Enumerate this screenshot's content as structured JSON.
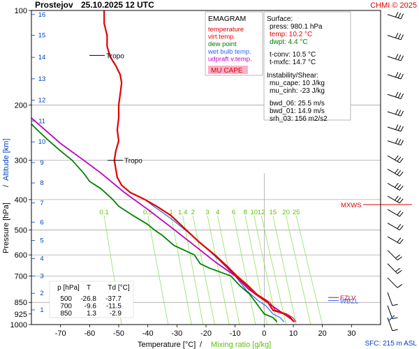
{
  "header": {
    "station": "Prostejov",
    "datetime": "25.10.2025 12 UTC",
    "copyright": "CHMI © 2025"
  },
  "legend": {
    "title": "EMAGRAM",
    "items": [
      {
        "label": "temperature",
        "color": "#e00000"
      },
      {
        "label": "virt.temp.",
        "color": "#e00000"
      },
      {
        "label": "dew point",
        "color": "#008000"
      },
      {
        "label": "wet bulb temp.",
        "color": "#3060ff"
      },
      {
        "label": "udpraft v.temp.",
        "color": "#c000c0"
      }
    ],
    "cape_badge": "MU CAPE",
    "cape_badge_color": "#ffb0c8"
  },
  "info": {
    "surface_title": "Surface:",
    "surface": [
      {
        "text": "press: 980.1 hPa",
        "color": "#000000"
      },
      {
        "text": "temp: 10.2 °C",
        "color": "#e00000"
      },
      {
        "text": "dwpt: 4.4 °C",
        "color": "#008000"
      }
    ],
    "tconv": "t-conv: 10.5 °C",
    "tmxfc": "t-mxfc: 14.7 °C",
    "instab_title": "Instability/Shear:",
    "instab": [
      "mu_cape: 10 J/kg",
      "mu_cinh: -23 J/kg",
      "bwd_06: 25.5 m/s",
      "bwd_01: 14.9 m/s",
      "srh_03: 156 m2/s2"
    ]
  },
  "table": {
    "headers": [
      "p [hPa]",
      "T",
      "Td [°C]"
    ],
    "rows": [
      [
        "500",
        "-26.8",
        "-37.7"
      ],
      [
        "700",
        "-9.6",
        "-11.5"
      ],
      [
        "850",
        "1.3",
        "-2.9"
      ]
    ]
  },
  "labels": {
    "tropo": "Tropo",
    "mxws": "MXWS",
    "fzlv": "FZLV",
    "wbzl": "WBZL",
    "sfc": "SFC: 215 m ASL"
  },
  "chart_data": {
    "type": "line",
    "title": "",
    "xlabel": "Temperature [°C]",
    "xlabel2": "Mixing ratio [g/kg]",
    "ylabel": "Pressure [hPa]",
    "ylabel2": "Altitude [km]",
    "xlim": [
      -80,
      40
    ],
    "ylim": [
      1000,
      100
    ],
    "yscale": "log",
    "x_ticks": [
      -70,
      -60,
      -50,
      -40,
      -30,
      -20,
      -10,
      0,
      10,
      20,
      30
    ],
    "y_ticks": [
      100,
      200,
      300,
      400,
      500,
      600,
      700,
      850,
      925,
      1000
    ],
    "y_gridlines": [
      200,
      300,
      400,
      500,
      600,
      700,
      850
    ],
    "altitude_ticks_km": [
      {
        "km": "16",
        "p": 103
      },
      {
        "km": "15",
        "p": 120
      },
      {
        "km": "14",
        "p": 141
      },
      {
        "km": "13",
        "p": 165
      },
      {
        "km": "12",
        "p": 193
      },
      {
        "km": "11",
        "p": 225
      },
      {
        "km": "10",
        "p": 262
      },
      {
        "km": "9",
        "p": 305
      },
      {
        "km": "8",
        "p": 354
      },
      {
        "km": "7",
        "p": 410
      },
      {
        "km": "6",
        "p": 472
      },
      {
        "km": "5",
        "p": 540
      },
      {
        "km": "4",
        "p": 617
      },
      {
        "km": "3",
        "p": 700
      },
      {
        "km": "2",
        "p": 795
      },
      {
        "km": "1",
        "p": 898
      }
    ],
    "mixing_ratio_labels": [
      "0.1",
      "0.5",
      "1",
      "1.4",
      "2",
      "3",
      "4",
      "6",
      "8",
      "10",
      "12",
      "15",
      "20",
      "25"
    ],
    "mixing_ratio_base_temp": [
      -49,
      -33,
      -25,
      -21,
      -17,
      -12,
      -8.5,
      -3,
      1,
      4.5,
      7.5,
      11,
      16,
      20
    ],
    "mixing_ratio_top_temp": [
      -55,
      -40,
      -32,
      -28,
      -24.5,
      -19.5,
      -16,
      -10.5,
      -6.5,
      -3.5,
      -1,
      3,
      7.5,
      11
    ],
    "tropopause_pressures": [
      139,
      300
    ],
    "series": [
      {
        "name": "temperature",
        "color": "#e00000",
        "points": [
          [
            10.2,
            980
          ],
          [
            9,
            950
          ],
          [
            7,
            925
          ],
          [
            3,
            900
          ],
          [
            1.3,
            850
          ],
          [
            -3,
            800
          ],
          [
            -6,
            750
          ],
          [
            -9.6,
            700
          ],
          [
            -13,
            650
          ],
          [
            -17,
            600
          ],
          [
            -22,
            550
          ],
          [
            -26.8,
            500
          ],
          [
            -32,
            450
          ],
          [
            -37,
            420
          ],
          [
            -41,
            400
          ],
          [
            -46,
            380
          ],
          [
            -49,
            360
          ],
          [
            -50.5,
            340
          ],
          [
            -51,
            320
          ],
          [
            -51.5,
            300
          ],
          [
            -51,
            280
          ],
          [
            -50,
            260
          ],
          [
            -50.5,
            240
          ],
          [
            -50,
            220
          ],
          [
            -50,
            200
          ],
          [
            -49.5,
            185
          ],
          [
            -49,
            170
          ],
          [
            -49.5,
            160
          ],
          [
            -51,
            150
          ],
          [
            -53,
            140
          ],
          [
            -54,
            130
          ],
          [
            -54,
            120
          ],
          [
            -55,
            110
          ],
          [
            -55,
            100
          ]
        ]
      },
      {
        "name": "virt.temp.",
        "color": "#e00000",
        "points": [
          [
            11,
            980
          ],
          [
            9.8,
            950
          ],
          [
            7.8,
            925
          ],
          [
            3.8,
            900
          ],
          [
            2,
            850
          ],
          [
            -2.4,
            800
          ],
          [
            -5.5,
            750
          ],
          [
            -9.2,
            700
          ],
          [
            -12.7,
            650
          ],
          [
            -16.8,
            600
          ],
          [
            -21.8,
            550
          ],
          [
            -26.7,
            500
          ],
          [
            -32,
            450
          ],
          [
            -37,
            420
          ],
          [
            -41,
            400
          ],
          [
            -46,
            380
          ],
          [
            -49,
            360
          ],
          [
            -50.5,
            340
          ],
          [
            -51,
            320
          ],
          [
            -51.5,
            300
          ]
        ]
      },
      {
        "name": "dew point",
        "color": "#008000",
        "points": [
          [
            4.4,
            980
          ],
          [
            3,
            950
          ],
          [
            0,
            925
          ],
          [
            -2.9,
            850
          ],
          [
            -5,
            800
          ],
          [
            -8.5,
            750
          ],
          [
            -11.5,
            700
          ],
          [
            -19,
            660
          ],
          [
            -22,
            640
          ],
          [
            -24,
            600
          ],
          [
            -31,
            560
          ],
          [
            -35,
            520
          ],
          [
            -37.7,
            500
          ],
          [
            -40,
            480
          ],
          [
            -45,
            450
          ],
          [
            -50,
            420
          ],
          [
            -52,
            400
          ],
          [
            -56,
            370
          ],
          [
            -60,
            350
          ],
          [
            -62,
            330
          ],
          [
            -66,
            300
          ],
          [
            -70,
            280
          ],
          [
            -74,
            260
          ],
          [
            -78,
            240
          ],
          [
            -80,
            230
          ]
        ]
      },
      {
        "name": "wet bulb temp.",
        "color": "#3060ff",
        "points": [
          [
            6.8,
            980
          ],
          [
            5.5,
            950
          ],
          [
            3,
            925
          ],
          [
            0.5,
            870
          ],
          [
            -2,
            840
          ],
          [
            -6,
            780
          ],
          [
            -10,
            700
          ],
          [
            -15,
            630
          ],
          [
            -20,
            570
          ],
          [
            -26,
            510
          ],
          [
            -32,
            460
          ],
          [
            -38,
            420
          ],
          [
            -41,
            400
          ]
        ]
      },
      {
        "name": "udpraft v.temp.",
        "color": "#c000c0",
        "points": [
          [
            10.5,
            980
          ],
          [
            7.5,
            935
          ],
          [
            1,
            850
          ],
          [
            -5.5,
            770
          ],
          [
            -10,
            700
          ],
          [
            -17,
            630
          ],
          [
            -24,
            560
          ],
          [
            -32,
            490
          ],
          [
            -40,
            430
          ],
          [
            -48,
            380
          ],
          [
            -56,
            330
          ],
          [
            -62,
            300
          ],
          [
            -70,
            265
          ],
          [
            -80,
            220
          ]
        ]
      }
    ],
    "wind_barbs_pressures": [
      103,
      120,
      140,
      160,
      185,
      210,
      235,
      260,
      290,
      320,
      355,
      390,
      430,
      475,
      525,
      580,
      640,
      710,
      790,
      870,
      950
    ]
  }
}
